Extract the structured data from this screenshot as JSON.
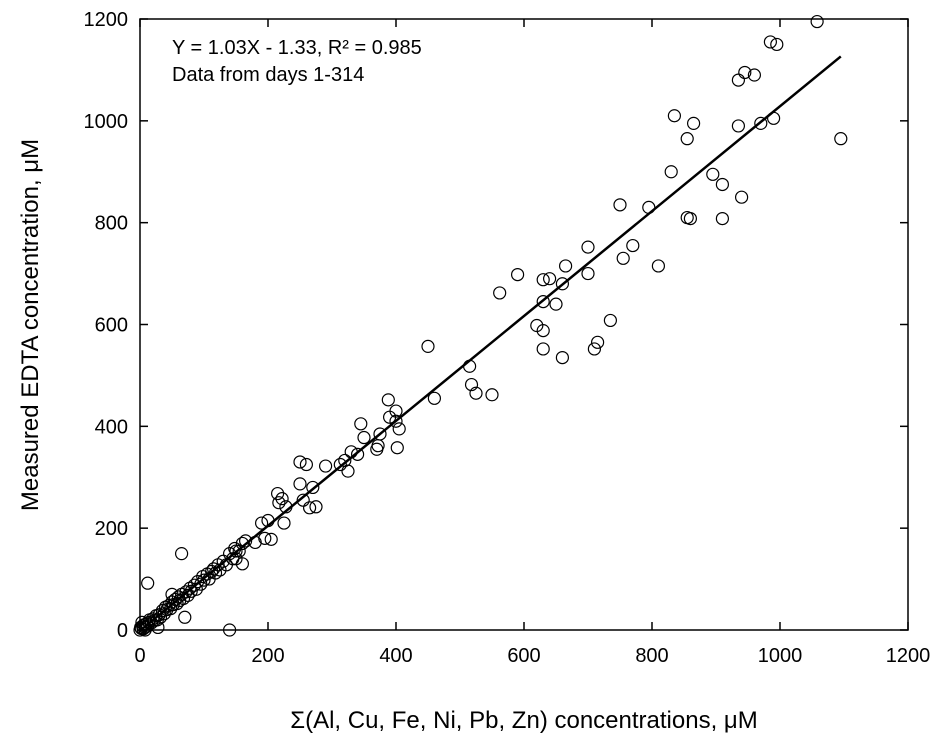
{
  "chart_data": {
    "type": "scatter",
    "x_label": "Σ(Al, Cu, Fe, Ni, Pb, Zn) concentrations, μM",
    "y_label": "Measured EDTA concentration, μM",
    "annotations": [
      "Y = 1.03X - 1.33, R² = 0.985",
      "Data from days 1-314"
    ],
    "xlim": [
      0,
      1200
    ],
    "ylim": [
      0,
      1200
    ],
    "xticks": [
      0,
      200,
      400,
      600,
      800,
      1000,
      1200
    ],
    "yticks": [
      0,
      200,
      400,
      600,
      800,
      1000,
      1200
    ],
    "color": "#000000",
    "x": [
      1058,
      985,
      995,
      945,
      960,
      935,
      1095,
      990,
      970,
      835,
      865,
      935,
      855,
      895,
      830,
      910,
      940,
      795,
      855,
      860,
      910,
      750,
      770,
      700,
      810,
      755,
      700,
      665,
      590,
      630,
      640,
      562,
      660,
      650,
      630,
      620,
      630,
      735,
      715,
      710,
      630,
      660,
      450,
      515,
      518,
      525,
      550,
      460,
      400,
      390,
      400,
      345,
      388,
      405,
      402,
      372,
      370,
      375,
      350,
      330,
      340,
      320,
      313,
      325,
      290,
      250,
      260,
      265,
      275,
      270,
      250,
      255,
      215,
      222,
      217,
      228,
      225,
      200,
      190,
      195,
      205,
      180,
      160,
      165,
      155,
      150,
      160,
      140,
      65,
      12,
      2,
      4,
      5,
      6,
      8,
      10,
      12,
      14,
      15,
      18,
      20,
      22,
      25,
      27,
      30,
      32,
      35,
      38,
      40,
      42,
      45,
      48,
      50,
      52,
      55,
      58,
      60,
      62,
      65,
      68,
      70,
      72,
      75,
      78,
      80,
      85,
      88,
      90,
      95,
      98,
      100,
      105,
      108,
      112,
      115,
      118,
      122,
      125,
      130,
      135,
      140,
      145,
      148,
      150,
      0,
      1,
      3,
      8,
      28,
      50
    ],
    "y": [
      1195,
      1155,
      1150,
      1095,
      1090,
      1080,
      965,
      1005,
      995,
      1010,
      995,
      990,
      965,
      895,
      900,
      875,
      850,
      830,
      810,
      808,
      808,
      835,
      755,
      752,
      715,
      730,
      700,
      715,
      698,
      688,
      690,
      662,
      680,
      640,
      645,
      598,
      588,
      608,
      565,
      552,
      552,
      535,
      557,
      518,
      482,
      465,
      462,
      455,
      430,
      418,
      410,
      405,
      452,
      395,
      358,
      362,
      355,
      385,
      378,
      350,
      345,
      333,
      325,
      312,
      322,
      330,
      325,
      240,
      242,
      280,
      287,
      255,
      268,
      258,
      250,
      242,
      210,
      215,
      210,
      180,
      178,
      172,
      170,
      175,
      155,
      140,
      130,
      0,
      150,
      92,
      3,
      8,
      2,
      10,
      5,
      12,
      8,
      15,
      20,
      14,
      22,
      18,
      28,
      20,
      30,
      25,
      38,
      32,
      45,
      40,
      48,
      42,
      55,
      50,
      60,
      52,
      65,
      58,
      70,
      62,
      25,
      75,
      68,
      82,
      76,
      88,
      80,
      95,
      90,
      105,
      98,
      110,
      100,
      115,
      120,
      112,
      128,
      118,
      135,
      128,
      150,
      140,
      160,
      155,
      0,
      5,
      15,
      0,
      5,
      70
    ],
    "fit": {
      "x": [
        0,
        1095
      ],
      "y": [
        -1.33,
        1126.52
      ]
    }
  }
}
